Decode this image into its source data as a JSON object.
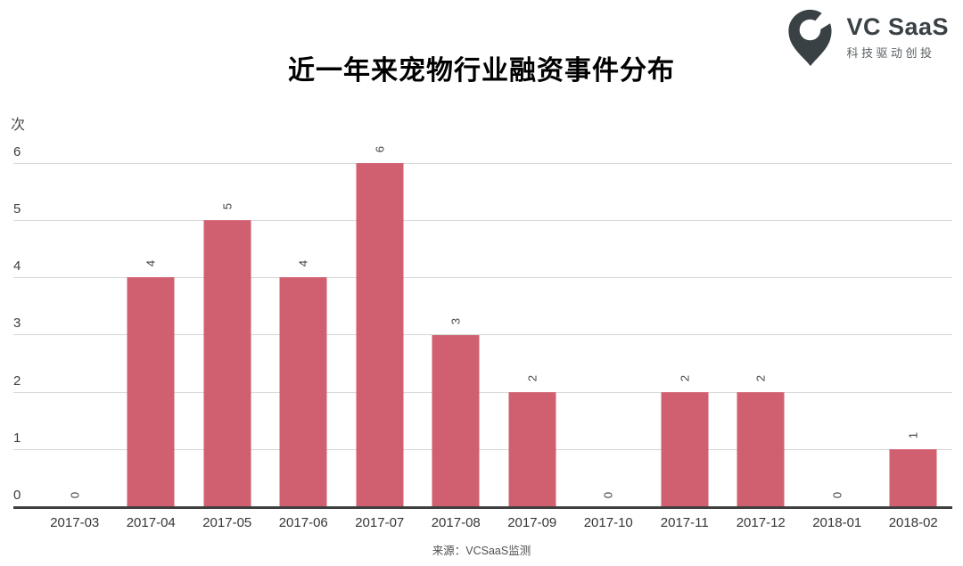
{
  "header": {
    "title": "近一年来宠物行业融资事件分布"
  },
  "logo": {
    "name": "VC SaaS",
    "tagline": "科技驱动创投",
    "icon": "vcsaas-pin-icon",
    "brand_color": "#394145"
  },
  "footer": {
    "source": "来源：VCSaaS监测"
  },
  "chart_data": {
    "type": "bar",
    "title": "近一年来宠物行业融资事件分布",
    "ylabel": "次",
    "xlabel": "",
    "categories": [
      "2017-03",
      "2017-04",
      "2017-05",
      "2017-06",
      "2017-07",
      "2017-08",
      "2017-09",
      "2017-10",
      "2017-11",
      "2017-12",
      "2018-01",
      "2018-02"
    ],
    "values": [
      0,
      4,
      5,
      4,
      6,
      3,
      2,
      0,
      2,
      2,
      0,
      1
    ],
    "ylim": [
      0,
      6
    ],
    "yticks": [
      0,
      1,
      2,
      3,
      4,
      5,
      6
    ],
    "grid": "horizontal",
    "legend": "none",
    "bar_color": "#d05f70",
    "axis_color": "#3f3f3f",
    "grid_color": "#d5d5d5",
    "value_label_rotation_deg": 90
  }
}
